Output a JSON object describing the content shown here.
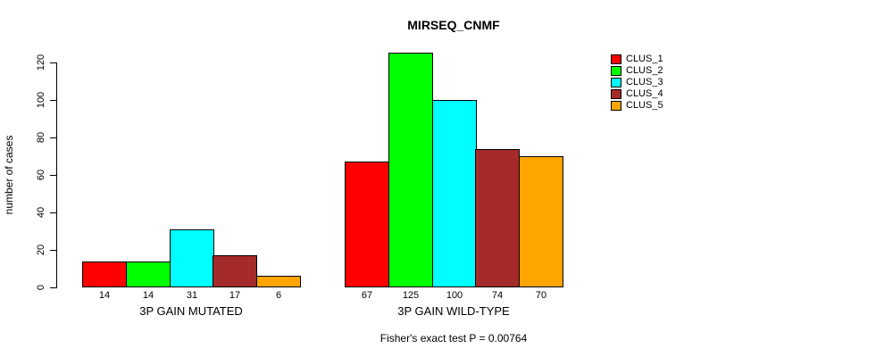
{
  "chart_data": {
    "type": "bar",
    "title": "MIRSEQ_CNMF",
    "ylabel": "number of cases",
    "xlabel": "",
    "categories": [
      "3P GAIN MUTATED",
      "3P GAIN WILD-TYPE"
    ],
    "series": [
      {
        "name": "CLUS_1",
        "color": "#FF0000",
        "values": [
          14,
          67
        ]
      },
      {
        "name": "CLUS_2",
        "color": "#00FF00",
        "values": [
          14,
          125
        ]
      },
      {
        "name": "CLUS_3",
        "color": "#00FFFF",
        "values": [
          31,
          100
        ]
      },
      {
        "name": "CLUS_4",
        "color": "#A52A2A",
        "values": [
          17,
          74
        ]
      },
      {
        "name": "CLUS_5",
        "color": "#FFA500",
        "values": [
          6,
          70
        ]
      }
    ],
    "bar_value_labels": [
      [
        14,
        14,
        31,
        17,
        6
      ],
      [
        67,
        125,
        100,
        74,
        70
      ]
    ],
    "ylim": [
      0,
      120
    ],
    "yticks": [
      0,
      20,
      40,
      60,
      80,
      100,
      120
    ],
    "grid": false,
    "legend_position": "right",
    "annotation": "Fisher's exact test P = 0.00764"
  }
}
